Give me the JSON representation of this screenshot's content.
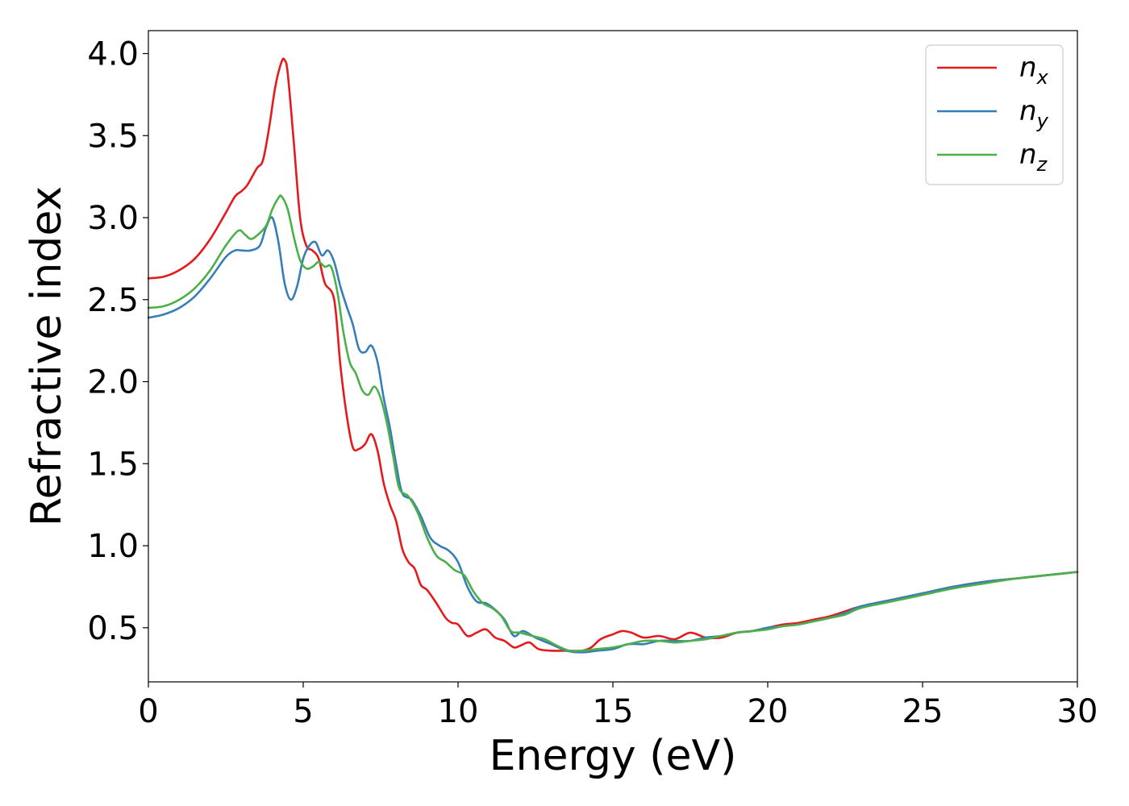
{
  "chart_data": {
    "type": "line",
    "title": "",
    "xlabel": "Energy (eV)",
    "ylabel": "Refractive index",
    "xlim": [
      0,
      30
    ],
    "ylim": [
      0.17,
      4.14
    ],
    "xticks": [
      0,
      5,
      10,
      15,
      20,
      25,
      30
    ],
    "xtick_labels": [
      "0",
      "5",
      "10",
      "15",
      "20",
      "25",
      "30"
    ],
    "yticks": [
      0.5,
      1.0,
      1.5,
      2.0,
      2.5,
      3.0,
      3.5,
      4.0
    ],
    "ytick_labels": [
      "0.5",
      "1.0",
      "1.5",
      "2.0",
      "2.5",
      "3.0",
      "3.5",
      "4.0"
    ],
    "grid": false,
    "legend_position": "top-right",
    "series": [
      {
        "name": "n_x",
        "label_base": "n",
        "label_sub": "x",
        "color": "#e41a1c",
        "x": [
          0,
          0.5,
          1,
          1.5,
          2,
          2.5,
          2.8,
          3.0,
          3.2,
          3.5,
          3.7,
          3.9,
          4.1,
          4.3,
          4.4,
          4.5,
          4.7,
          4.9,
          5.1,
          5.3,
          5.5,
          5.7,
          6.0,
          6.2,
          6.4,
          6.6,
          6.8,
          7.0,
          7.2,
          7.4,
          7.6,
          7.8,
          8.0,
          8.2,
          8.4,
          8.6,
          8.8,
          9.0,
          9.3,
          9.6,
          9.8,
          10.0,
          10.3,
          10.6,
          10.9,
          11.2,
          11.5,
          11.8,
          12.0,
          12.3,
          12.6,
          13.0,
          13.5,
          14.0,
          14.3,
          14.6,
          15.0,
          15.3,
          15.6,
          16.0,
          16.5,
          17.0,
          17.5,
          18.0,
          18.5,
          19.0,
          19.5,
          20.0,
          20.5,
          21.0,
          21.5,
          22.0,
          22.5,
          23.0,
          24.0,
          25.0,
          26.0,
          27.0,
          28.0,
          29.0,
          30.0
        ],
        "values": [
          2.63,
          2.64,
          2.68,
          2.75,
          2.87,
          3.03,
          3.13,
          3.16,
          3.2,
          3.3,
          3.35,
          3.55,
          3.8,
          3.95,
          3.96,
          3.88,
          3.45,
          3.0,
          2.83,
          2.8,
          2.75,
          2.6,
          2.5,
          2.1,
          1.8,
          1.6,
          1.59,
          1.62,
          1.68,
          1.58,
          1.38,
          1.25,
          1.15,
          0.98,
          0.9,
          0.86,
          0.76,
          0.73,
          0.65,
          0.56,
          0.53,
          0.52,
          0.45,
          0.47,
          0.49,
          0.44,
          0.42,
          0.38,
          0.39,
          0.41,
          0.37,
          0.36,
          0.36,
          0.36,
          0.38,
          0.43,
          0.46,
          0.48,
          0.47,
          0.44,
          0.45,
          0.43,
          0.47,
          0.44,
          0.44,
          0.47,
          0.48,
          0.5,
          0.52,
          0.53,
          0.55,
          0.57,
          0.6,
          0.63,
          0.67,
          0.71,
          0.75,
          0.78,
          0.8,
          0.82,
          0.84
        ]
      },
      {
        "name": "n_y",
        "label_base": "n",
        "label_sub": "y",
        "color": "#377eb8",
        "x": [
          0,
          0.5,
          1,
          1.5,
          2,
          2.5,
          2.8,
          3.0,
          3.3,
          3.6,
          3.8,
          4.0,
          4.2,
          4.4,
          4.6,
          4.8,
          5.0,
          5.2,
          5.4,
          5.6,
          5.8,
          6.0,
          6.2,
          6.4,
          6.6,
          6.8,
          7.0,
          7.2,
          7.4,
          7.6,
          7.8,
          8.0,
          8.2,
          8.5,
          8.8,
          9.1,
          9.4,
          9.7,
          10.0,
          10.3,
          10.6,
          10.9,
          11.2,
          11.5,
          11.8,
          12.1,
          12.5,
          13.0,
          13.5,
          14.0,
          14.5,
          15.0,
          15.5,
          16.0,
          16.5,
          17.0,
          17.5,
          18.0,
          18.5,
          19.0,
          19.5,
          20.0,
          20.5,
          21.0,
          21.5,
          22.0,
          22.5,
          23.0,
          24.0,
          25.0,
          26.0,
          27.0,
          28.0,
          29.0,
          30.0
        ],
        "values": [
          2.39,
          2.41,
          2.45,
          2.52,
          2.63,
          2.76,
          2.8,
          2.8,
          2.8,
          2.83,
          2.94,
          3.0,
          2.85,
          2.6,
          2.5,
          2.58,
          2.75,
          2.83,
          2.85,
          2.77,
          2.8,
          2.73,
          2.58,
          2.46,
          2.35,
          2.2,
          2.18,
          2.22,
          2.12,
          1.9,
          1.72,
          1.5,
          1.32,
          1.28,
          1.18,
          1.05,
          1.0,
          0.97,
          0.9,
          0.75,
          0.66,
          0.65,
          0.61,
          0.55,
          0.45,
          0.48,
          0.44,
          0.4,
          0.36,
          0.35,
          0.36,
          0.37,
          0.4,
          0.4,
          0.42,
          0.42,
          0.42,
          0.44,
          0.45,
          0.47,
          0.48,
          0.5,
          0.51,
          0.52,
          0.54,
          0.56,
          0.59,
          0.63,
          0.67,
          0.71,
          0.75,
          0.78,
          0.8,
          0.82,
          0.84
        ]
      },
      {
        "name": "n_z",
        "label_base": "n",
        "label_sub": "z",
        "color": "#4daf4a",
        "x": [
          0,
          0.5,
          1,
          1.5,
          2,
          2.5,
          2.9,
          3.1,
          3.3,
          3.5,
          3.8,
          4.0,
          4.2,
          4.3,
          4.5,
          4.7,
          4.9,
          5.1,
          5.3,
          5.5,
          5.7,
          5.9,
          6.1,
          6.3,
          6.5,
          6.7,
          6.9,
          7.1,
          7.3,
          7.5,
          7.7,
          7.9,
          8.1,
          8.4,
          8.7,
          9.0,
          9.3,
          9.6,
          9.9,
          10.2,
          10.5,
          10.8,
          11.1,
          11.4,
          11.7,
          12.0,
          12.4,
          12.8,
          13.2,
          13.6,
          14.0,
          14.5,
          15.0,
          15.5,
          16.0,
          16.5,
          17.0,
          17.5,
          18.0,
          18.5,
          19.0,
          19.5,
          20.0,
          20.5,
          21.0,
          21.5,
          22.0,
          22.5,
          23.0,
          24.0,
          25.0,
          26.0,
          27.0,
          28.0,
          29.0,
          30.0
        ],
        "values": [
          2.45,
          2.46,
          2.5,
          2.57,
          2.68,
          2.83,
          2.92,
          2.9,
          2.87,
          2.89,
          2.95,
          3.05,
          3.12,
          3.13,
          3.05,
          2.88,
          2.74,
          2.69,
          2.7,
          2.73,
          2.7,
          2.7,
          2.55,
          2.3,
          2.12,
          2.05,
          1.95,
          1.92,
          1.97,
          1.9,
          1.75,
          1.55,
          1.35,
          1.3,
          1.2,
          1.05,
          0.94,
          0.9,
          0.85,
          0.82,
          0.72,
          0.65,
          0.62,
          0.57,
          0.48,
          0.47,
          0.45,
          0.43,
          0.39,
          0.36,
          0.36,
          0.37,
          0.38,
          0.4,
          0.42,
          0.42,
          0.41,
          0.42,
          0.43,
          0.45,
          0.47,
          0.48,
          0.49,
          0.51,
          0.52,
          0.54,
          0.56,
          0.58,
          0.62,
          0.66,
          0.7,
          0.74,
          0.77,
          0.8,
          0.82,
          0.84
        ]
      }
    ]
  }
}
